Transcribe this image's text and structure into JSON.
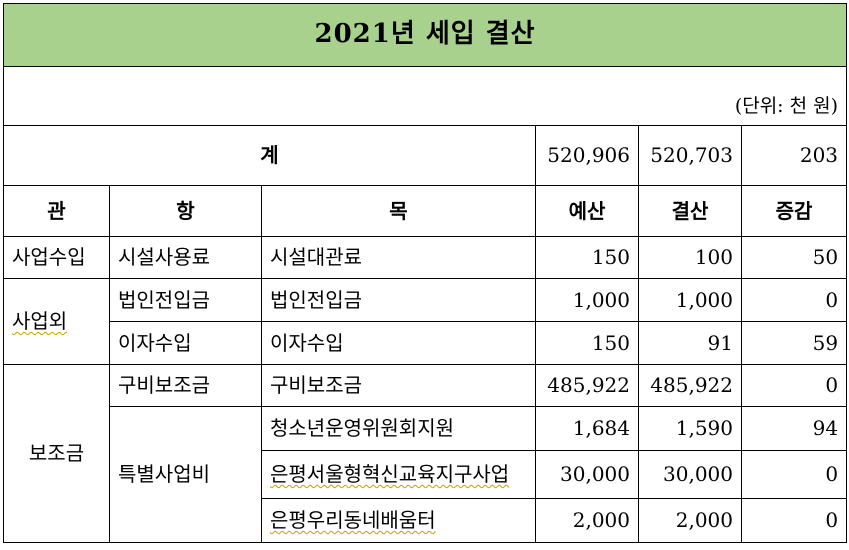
{
  "title": "2021년 세입 결산",
  "unit": "(단위: 천 원)",
  "total": {
    "label": "계",
    "budget": "520,906",
    "settlement": "520,703",
    "change": "203"
  },
  "headers": {
    "gwan": "관",
    "hang": "항",
    "mok": "목",
    "budget": "예산",
    "settlement": "결산",
    "change": "증감"
  },
  "rows": [
    {
      "gwan": "사업수입",
      "hang": "시설사용료",
      "mok": "시설대관료",
      "budget": "150",
      "settlement": "100",
      "change": "50"
    },
    {
      "gwan": "사업외",
      "hang": "법인전입금",
      "mok": "법인전입금",
      "budget": "1,000",
      "settlement": "1,000",
      "change": "0"
    },
    {
      "hang": "이자수입",
      "mok": "이자수입",
      "budget": "150",
      "settlement": "91",
      "change": "59"
    },
    {
      "gwan": "보조금",
      "hang": "구비보조금",
      "mok": "구비보조금",
      "budget": "485,922",
      "settlement": "485,922",
      "change": "0"
    },
    {
      "hang": "특별사업비",
      "mok": "청소년운영위원회지원",
      "budget": "1,684",
      "settlement": "1,590",
      "change": "94"
    },
    {
      "mok": "은평서울형혁신교육지구사업",
      "budget": "30,000",
      "settlement": "30,000",
      "change": "0"
    },
    {
      "mok": "은평우리동네배움터",
      "budget": "2,000",
      "settlement": "2,000",
      "change": "0"
    }
  ]
}
